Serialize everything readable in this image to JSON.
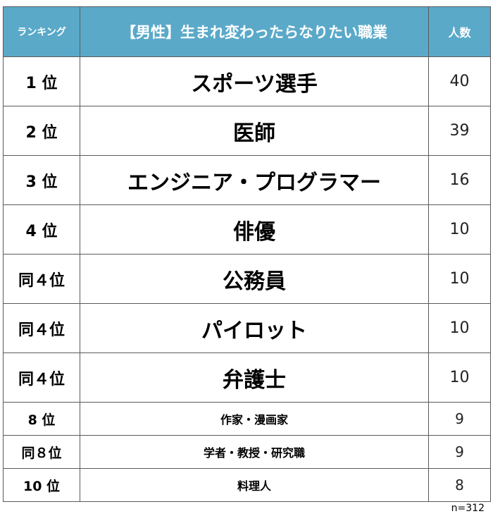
{
  "table": {
    "headers": {
      "rank": "ランキング",
      "job": "【男性】生まれ変わったらなりたい職業",
      "count": "人数"
    },
    "rows": [
      {
        "rank": "1 位",
        "job": "スポーツ選手",
        "count": "40"
      },
      {
        "rank": "2 位",
        "job": "医師",
        "count": "39"
      },
      {
        "rank": "3 位",
        "job": "エンジニア・プログラマー",
        "count": "16"
      },
      {
        "rank": "4 位",
        "job": "俳優",
        "count": "10"
      },
      {
        "rank": "同４位",
        "job": "公務員",
        "count": "10"
      },
      {
        "rank": "同４位",
        "job": "パイロット",
        "count": "10"
      },
      {
        "rank": "同４位",
        "job": "弁護士",
        "count": "10"
      },
      {
        "rank": "8 位",
        "job": "作家・漫画家",
        "count": "9"
      },
      {
        "rank": "同８位",
        "job": "学者・教授・研究職",
        "count": "9"
      },
      {
        "rank": "10 位",
        "job": "料理人",
        "count": "8"
      }
    ]
  },
  "footer": {
    "sample_size": "n=312"
  },
  "colors": {
    "header_bg": "#5aa9c9",
    "header_text": "#ffffff",
    "border": "#5a5a5a"
  }
}
